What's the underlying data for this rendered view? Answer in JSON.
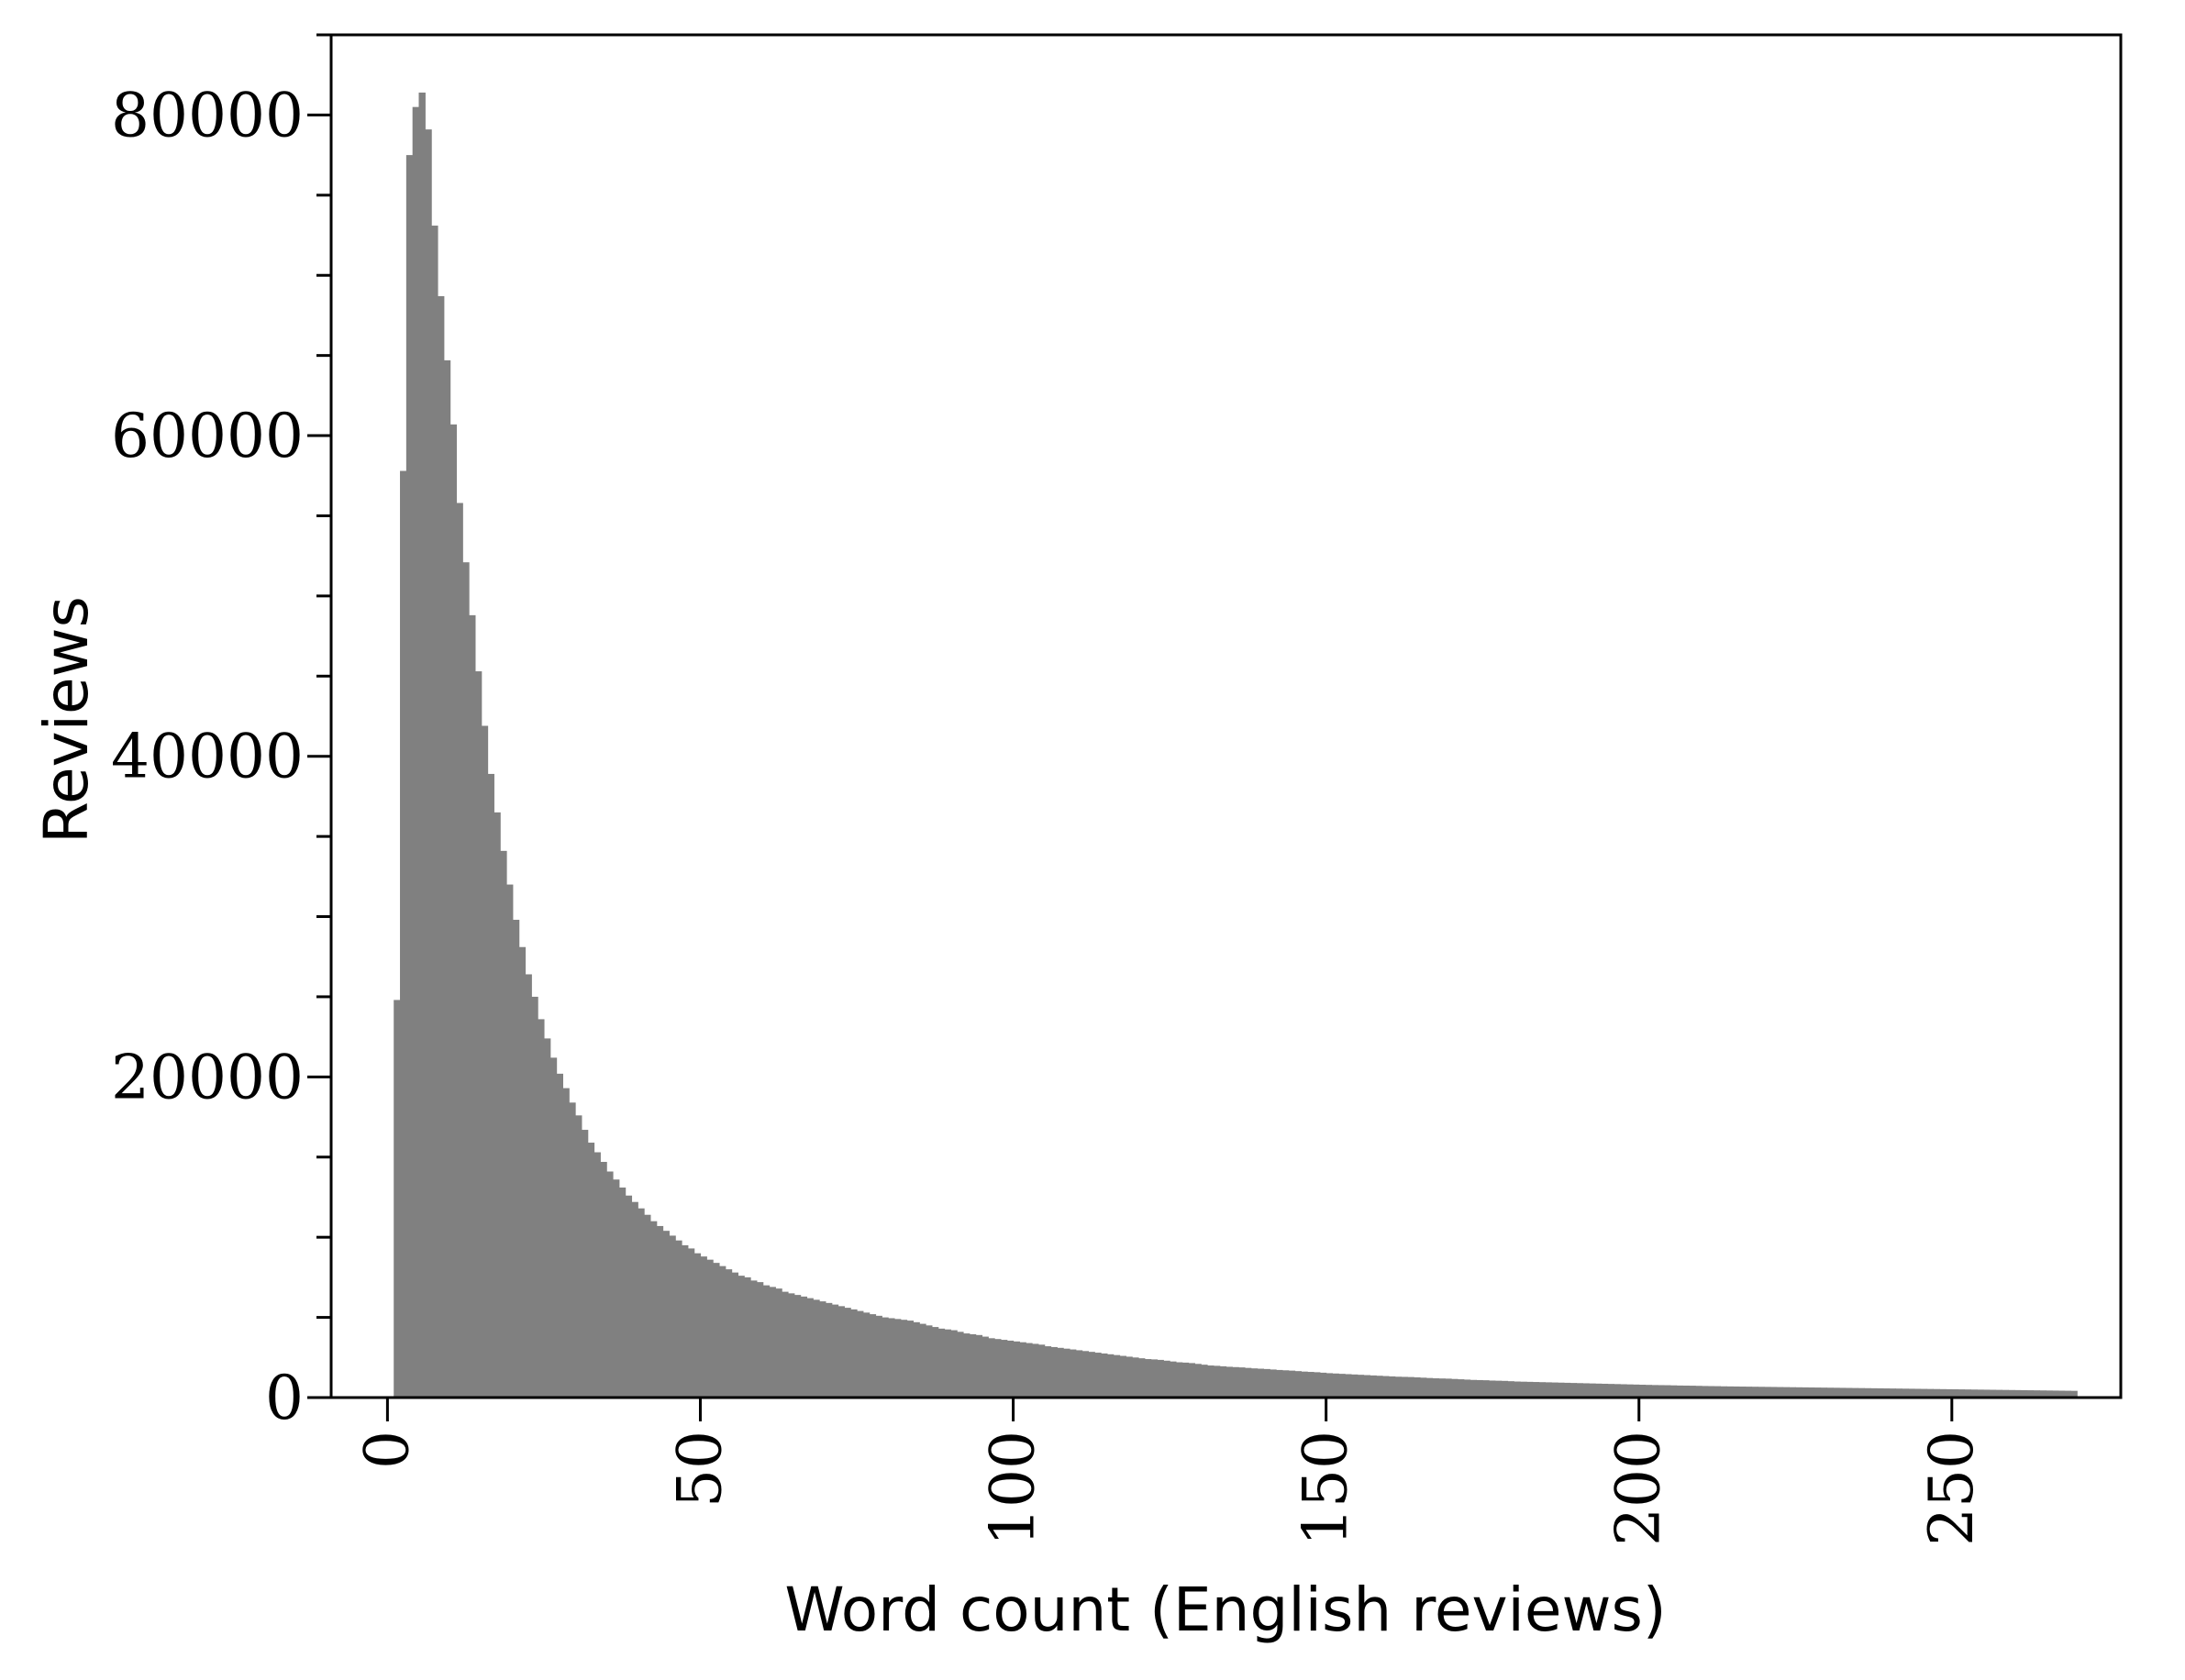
{
  "chart_data": {
    "type": "bar",
    "xlabel": "Word count (English reviews)",
    "ylabel": "Reviews",
    "xlim": [
      -9,
      277
    ],
    "ylim": [
      0,
      85000
    ],
    "xticks": [
      0,
      50,
      100,
      150,
      200,
      250
    ],
    "xtick_labels": [
      "0",
      "50",
      "100",
      "150",
      "200",
      "250"
    ],
    "yticks": [
      0,
      20000,
      40000,
      60000,
      80000
    ],
    "ytick_labels": [
      "0",
      "20000",
      "40000",
      "60000",
      "80000"
    ],
    "y_minor_step": 5000,
    "grid": false,
    "bar_color": "#808080",
    "bin_start": 1,
    "bin_width": 1,
    "values": [
      24800,
      57800,
      77500,
      80500,
      81400,
      79100,
      73100,
      68700,
      64700,
      60700,
      55800,
      52100,
      48800,
      45300,
      41900,
      38900,
      36500,
      34100,
      32000,
      29800,
      28100,
      26400,
      25000,
      23600,
      22400,
      21200,
      20200,
      19300,
      18400,
      17600,
      16700,
      15900,
      15300,
      14700,
      14100,
      13600,
      13100,
      12600,
      12200,
      11800,
      11400,
      11000,
      10700,
      10400,
      10100,
      9800,
      9500,
      9300,
      9000,
      8800,
      8600,
      8400,
      8200,
      8000,
      7800,
      7600,
      7500,
      7300,
      7200,
      7000,
      6900,
      6800,
      6600,
      6500,
      6400,
      6300,
      6200,
      6100,
      6000,
      5900,
      5800,
      5700,
      5600,
      5500,
      5400,
      5300,
      5200,
      5100,
      5000,
      4950,
      4900,
      4850,
      4800,
      4700,
      4600,
      4500,
      4400,
      4300,
      4250,
      4200,
      4100,
      4000,
      3950,
      3900,
      3800,
      3700,
      3650,
      3600,
      3550,
      3500,
      3450,
      3400,
      3350,
      3300,
      3200,
      3150,
      3100,
      3050,
      3000,
      2950,
      2900,
      2850,
      2800,
      2750,
      2700,
      2650,
      2600,
      2550,
      2500,
      2450,
      2400,
      2380,
      2350,
      2300,
      2250,
      2200,
      2180,
      2150,
      2100,
      2050,
      2000,
      1980,
      1950,
      1920,
      1900,
      1880,
      1850,
      1820,
      1800,
      1780,
      1750,
      1720,
      1700,
      1680,
      1650,
      1620,
      1600,
      1580,
      1550,
      1520,
      1500,
      1480,
      1460,
      1440,
      1420,
      1400,
      1380,
      1360,
      1340,
      1320,
      1300,
      1290,
      1280,
      1260,
      1240,
      1220,
      1200,
      1190,
      1180,
      1160,
      1140,
      1120,
      1100,
      1090,
      1080,
      1060,
      1050,
      1040,
      1020,
      1000,
      990,
      980,
      970,
      960,
      950,
      940,
      930,
      920,
      910,
      900,
      890,
      880,
      870,
      860,
      850,
      840,
      830,
      820,
      810,
      800,
      790,
      780,
      775,
      770,
      760,
      750,
      745,
      740,
      730,
      720,
      715,
      710,
      700,
      695,
      690,
      685,
      680,
      675,
      670,
      665,
      660,
      655,
      650,
      645,
      640,
      635,
      630,
      625,
      620,
      615,
      610,
      605,
      600,
      595,
      590,
      585,
      580,
      575,
      570,
      565,
      560,
      555,
      550,
      545,
      540,
      535,
      530,
      525,
      520,
      515,
      510,
      505,
      500,
      495,
      490,
      485,
      480,
      475,
      470,
      465,
      460,
      455,
      450,
      445,
      440,
      435,
      430,
      425,
      420
    ]
  }
}
